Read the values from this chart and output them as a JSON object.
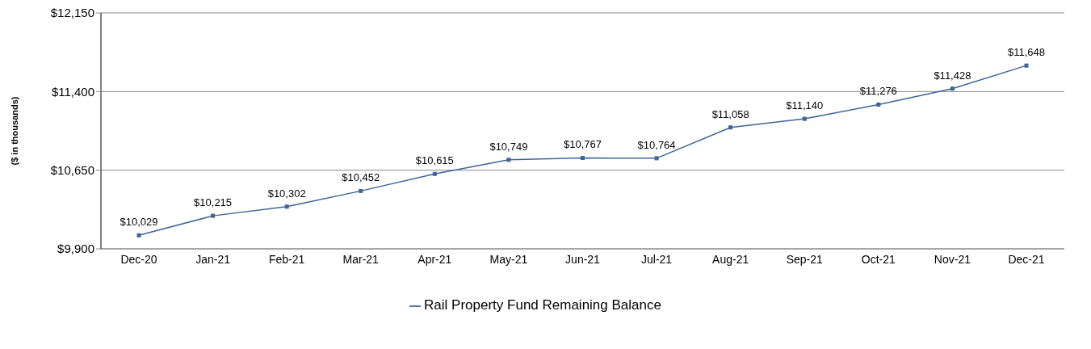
{
  "chart_data": {
    "type": "line",
    "ylabel": "($ in thousands)",
    "categories": [
      "Dec-20",
      "Jan-21",
      "Feb-21",
      "Mar-21",
      "Apr-21",
      "May-21",
      "Jun-21",
      "Jul-21",
      "Aug-21",
      "Sep-21",
      "Oct-21",
      "Nov-21",
      "Dec-21"
    ],
    "series": [
      {
        "name": "Rail Property Fund Remaining Balance",
        "color": "#3f6595",
        "values": [
          10029,
          10215,
          10302,
          10452,
          10615,
          10749,
          10767,
          10764,
          11058,
          11140,
          11276,
          11428,
          11648
        ],
        "value_labels": [
          "$10,029",
          "$10,215",
          "$10,302",
          "$10,452",
          "$10,615",
          "$10,749",
          "$10,767",
          "$10,764",
          "$11,058",
          "$11,140",
          "$11,276",
          "$11,428",
          "$11,648"
        ]
      }
    ],
    "ylim": [
      9900,
      12150
    ],
    "yticks": [
      {
        "value": 9900,
        "label": "$9,900"
      },
      {
        "value": 10650,
        "label": "$10,650"
      },
      {
        "value": 11400,
        "label": "$11,400"
      },
      {
        "value": 12150,
        "label": "$12,150"
      }
    ],
    "grid": "y",
    "legend": "bottom",
    "marker": "square",
    "line_style": "solid"
  }
}
